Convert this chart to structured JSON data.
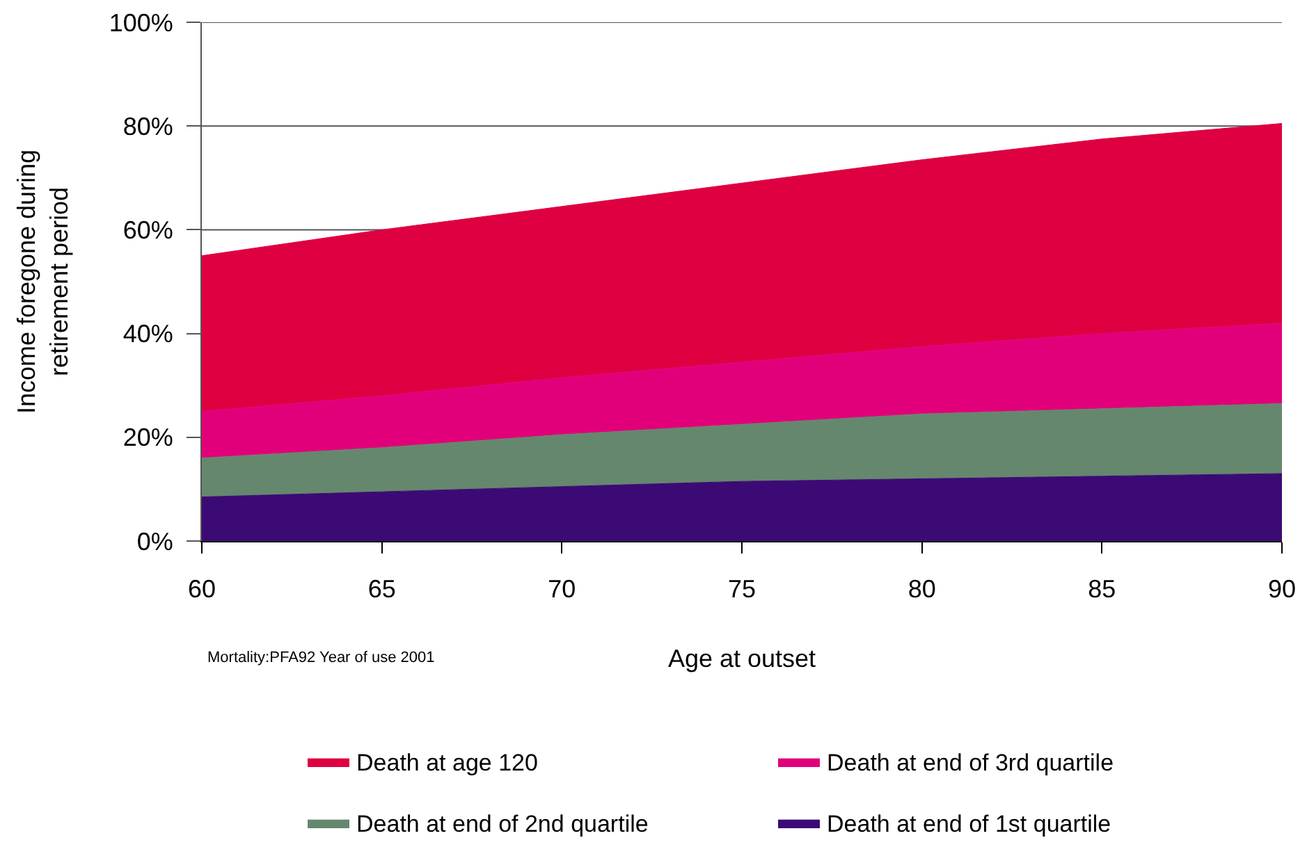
{
  "chart_data": {
    "type": "area",
    "stacked": true,
    "xlabel": "Age at outset",
    "ylabel": "Income foregone during retirement period",
    "annotations": [
      "Mortality:PFA92 Year of use 2001"
    ],
    "x": [
      60,
      65,
      70,
      75,
      80,
      85,
      90
    ],
    "series": [
      {
        "name": "Death at end of 1st quartile",
        "color": "#3c0a74",
        "values": [
          8.5,
          9.5,
          10.5,
          11.5,
          12,
          12.5,
          13
        ]
      },
      {
        "name": "Death at end of 2nd quartile",
        "color": "#65876e",
        "values": [
          7.5,
          8.5,
          10,
          11,
          12.5,
          13,
          13.5
        ]
      },
      {
        "name": "Death at end of 3rd quartile",
        "color": "#e2007a",
        "values": [
          9,
          10,
          11,
          12,
          13,
          14.5,
          15.5
        ]
      },
      {
        "name": "Death at age 120",
        "color": "#de0041",
        "values": [
          30,
          32,
          33,
          34.5,
          36,
          37.5,
          38.5
        ]
      }
    ],
    "xlim": [
      60,
      90
    ],
    "xticks": [
      60,
      65,
      70,
      75,
      80,
      85,
      90
    ],
    "ylim": [
      0,
      100
    ],
    "yticks": [
      {
        "value": 0,
        "label": "0%"
      },
      {
        "value": 20,
        "label": "20%"
      },
      {
        "value": 40,
        "label": "40%"
      },
      {
        "value": 60,
        "label": "60%"
      },
      {
        "value": 80,
        "label": "80%"
      },
      {
        "value": 100,
        "label": "100%"
      }
    ],
    "grid": "y",
    "legend": "bottom"
  }
}
